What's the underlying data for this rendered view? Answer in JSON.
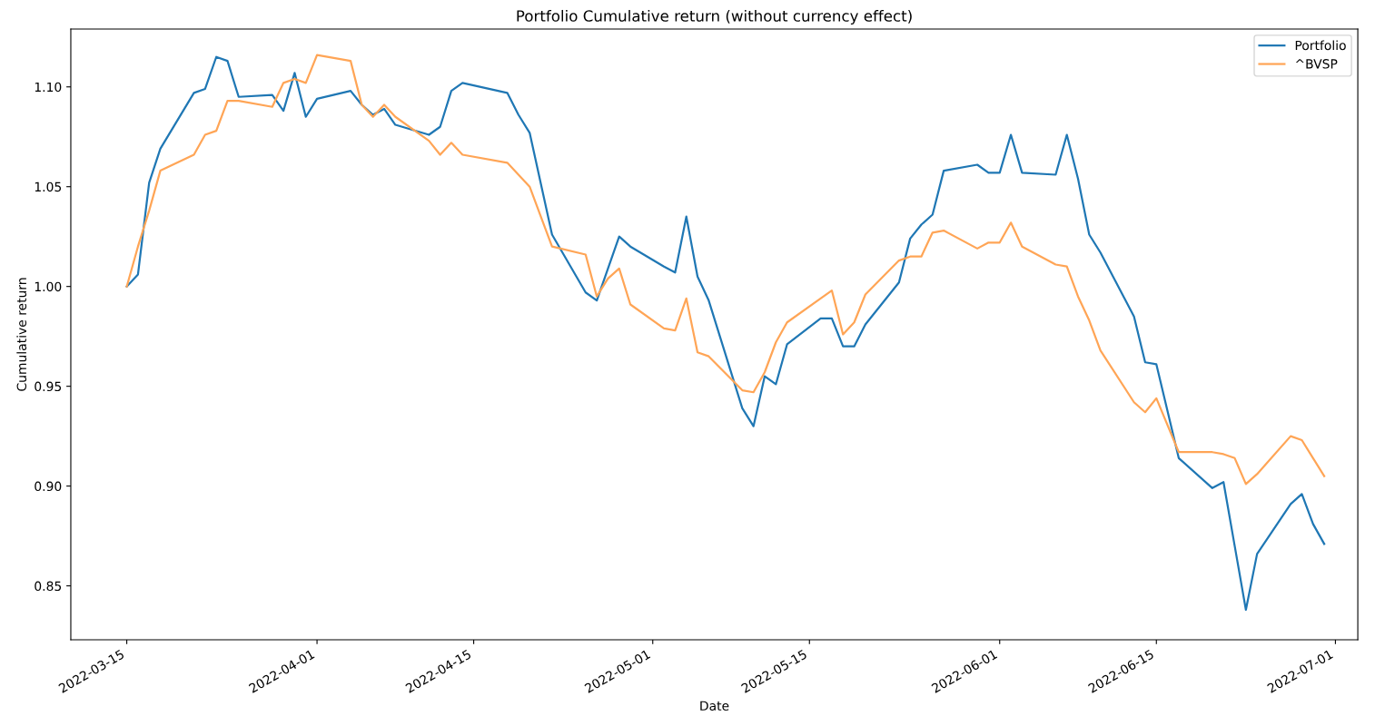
{
  "chart_data": {
    "type": "line",
    "title": "Portfolio Cumulative return (without currency effect)",
    "xlabel": "Date",
    "ylabel": "Cumulative return",
    "x": [
      "2022-03-15",
      "2022-03-16",
      "2022-03-17",
      "2022-03-18",
      "2022-03-21",
      "2022-03-22",
      "2022-03-23",
      "2022-03-24",
      "2022-03-25",
      "2022-03-28",
      "2022-03-29",
      "2022-03-30",
      "2022-03-31",
      "2022-04-01",
      "2022-04-04",
      "2022-04-05",
      "2022-04-06",
      "2022-04-07",
      "2022-04-08",
      "2022-04-11",
      "2022-04-12",
      "2022-04-13",
      "2022-04-14",
      "2022-04-18",
      "2022-04-19",
      "2022-04-20",
      "2022-04-22",
      "2022-04-25",
      "2022-04-26",
      "2022-04-27",
      "2022-04-28",
      "2022-04-29",
      "2022-05-02",
      "2022-05-03",
      "2022-05-04",
      "2022-05-05",
      "2022-05-06",
      "2022-05-09",
      "2022-05-10",
      "2022-05-11",
      "2022-05-12",
      "2022-05-13",
      "2022-05-16",
      "2022-05-17",
      "2022-05-18",
      "2022-05-19",
      "2022-05-20",
      "2022-05-23",
      "2022-05-24",
      "2022-05-25",
      "2022-05-26",
      "2022-05-27",
      "2022-05-30",
      "2022-05-31",
      "2022-06-01",
      "2022-06-02",
      "2022-06-03",
      "2022-06-06",
      "2022-06-07",
      "2022-06-08",
      "2022-06-09",
      "2022-06-10",
      "2022-06-13",
      "2022-06-14",
      "2022-06-15",
      "2022-06-17",
      "2022-06-20",
      "2022-06-21",
      "2022-06-22",
      "2022-06-23",
      "2022-06-24",
      "2022-06-27",
      "2022-06-28",
      "2022-06-29",
      "2022-06-30"
    ],
    "series": [
      {
        "name": "Portfolio",
        "color": "#1f77b4",
        "values": [
          1.0,
          1.006,
          1.052,
          1.069,
          1.097,
          1.099,
          1.115,
          1.113,
          1.095,
          1.096,
          1.088,
          1.107,
          1.085,
          1.094,
          1.098,
          1.091,
          1.086,
          1.089,
          1.081,
          1.076,
          1.08,
          1.098,
          1.102,
          1.097,
          1.086,
          1.077,
          1.026,
          0.997,
          0.993,
          1.009,
          1.025,
          1.02,
          1.01,
          1.007,
          1.035,
          1.005,
          0.993,
          0.939,
          0.93,
          0.955,
          0.951,
          0.971,
          0.984,
          0.984,
          0.97,
          0.97,
          0.981,
          1.002,
          1.024,
          1.031,
          1.036,
          1.058,
          1.061,
          1.057,
          1.057,
          1.076,
          1.057,
          1.056,
          1.076,
          1.054,
          1.026,
          1.017,
          0.985,
          0.962,
          0.961,
          0.914,
          0.899,
          0.902,
          0.87,
          0.838,
          0.866,
          0.891,
          0.896,
          0.881,
          0.871
        ]
      },
      {
        "name": "^BVSP",
        "color": "#ffa556",
        "values": [
          1.0,
          1.02,
          1.038,
          1.058,
          1.066,
          1.076,
          1.078,
          1.093,
          1.093,
          1.09,
          1.102,
          1.104,
          1.102,
          1.116,
          1.113,
          1.091,
          1.085,
          1.091,
          1.085,
          1.073,
          1.066,
          1.072,
          1.066,
          1.062,
          1.056,
          1.05,
          1.02,
          1.016,
          0.995,
          1.004,
          1.009,
          0.991,
          0.979,
          0.978,
          0.994,
          0.967,
          0.965,
          0.948,
          0.947,
          0.957,
          0.972,
          0.982,
          0.994,
          0.998,
          0.976,
          0.982,
          0.996,
          1.013,
          1.015,
          1.015,
          1.027,
          1.028,
          1.019,
          1.022,
          1.022,
          1.032,
          1.02,
          1.011,
          1.01,
          0.995,
          0.983,
          0.968,
          0.942,
          0.937,
          0.944,
          0.917,
          0.917,
          0.916,
          0.914,
          0.901,
          0.906,
          0.925,
          0.923,
          0.914,
          0.905
        ]
      }
    ],
    "xlim": [
      "2022-03-10",
      "2022-07-03"
    ],
    "xticks": [
      "2022-03-15",
      "2022-04-01",
      "2022-04-15",
      "2022-05-01",
      "2022-05-15",
      "2022-06-01",
      "2022-06-15",
      "2022-07-01"
    ],
    "ylim": [
      0.823,
      1.129
    ],
    "yticks": [
      {
        "value": 0.85,
        "label": "0.85"
      },
      {
        "value": 0.9,
        "label": "0.90"
      },
      {
        "value": 0.95,
        "label": "0.95"
      },
      {
        "value": 1.0,
        "label": "1.00"
      },
      {
        "value": 1.05,
        "label": "1.05"
      },
      {
        "value": 1.1,
        "label": "1.10"
      }
    ],
    "legend": "top right",
    "line_style": "solid",
    "marker": "none",
    "grid": false
  }
}
